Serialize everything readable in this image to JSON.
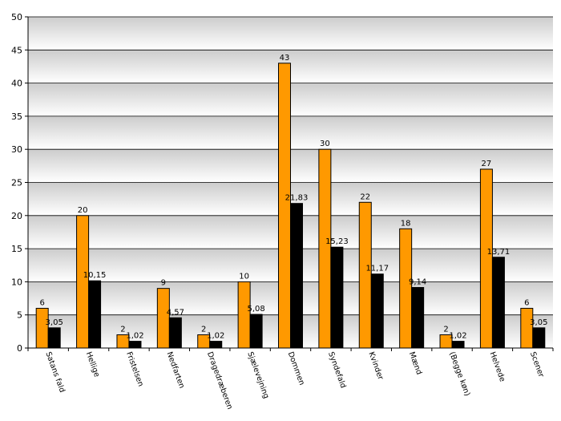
{
  "chart_data": {
    "type": "bar",
    "categories": [
      "Satans fald",
      "Hellige",
      "Fristelsen",
      "Nedfarten",
      "Dragedræberen",
      "Sjælevejning",
      "Dommen",
      "Syndefald",
      "Kvinder",
      "Mænd",
      "(Begge køn)",
      "Helvede",
      "Scener"
    ],
    "series": [
      {
        "values": [
          6,
          20,
          2,
          9,
          2,
          10,
          43,
          30,
          22,
          18,
          2,
          27,
          6
        ],
        "labels": [
          "6",
          "20",
          "2",
          "9",
          "2",
          "10",
          "43",
          "30",
          "22",
          "18",
          "2",
          "27",
          "6"
        ],
        "color": "#FF9900"
      },
      {
        "values": [
          3.05,
          10.15,
          1.02,
          4.57,
          1.02,
          5.08,
          21.83,
          15.23,
          11.17,
          9.14,
          1.02,
          13.71,
          3.05
        ],
        "labels": [
          "3,05",
          "10,15",
          "1,02",
          "4,57",
          "1,02",
          "5,08",
          "21,83",
          "15,23",
          "11,17",
          "9,14",
          "1,02",
          "13,71",
          "3,05"
        ],
        "color": "#000000"
      }
    ],
    "yticks": [
      "0",
      "5",
      "10",
      "15",
      "20",
      "25",
      "30",
      "35",
      "40",
      "45",
      "50"
    ],
    "ylim": [
      0,
      50
    ],
    "grid": true,
    "legend": "none",
    "title": "",
    "xlabel": "",
    "ylabel": ""
  }
}
